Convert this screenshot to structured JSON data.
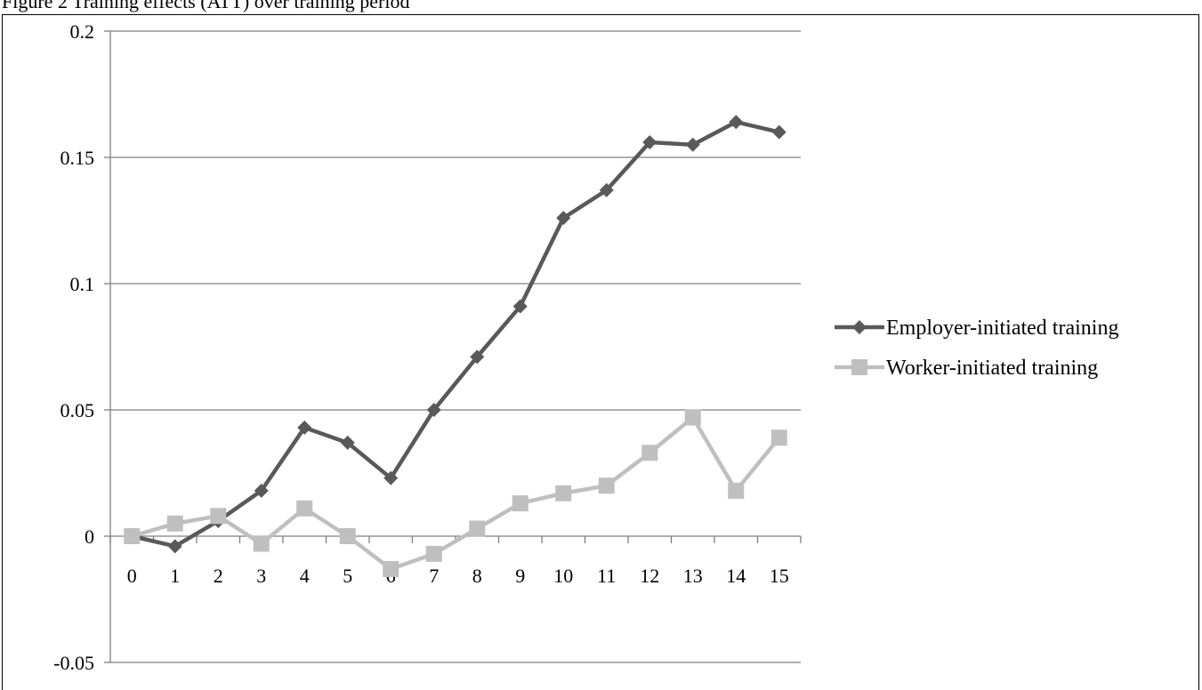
{
  "caption": "Figure 2 Training effects (ATT) over training period",
  "chart_data": {
    "type": "line",
    "title": "",
    "xlabel": "",
    "ylabel": "",
    "categories": [
      "0",
      "1",
      "2",
      "3",
      "4",
      "5",
      "6",
      "7",
      "8",
      "9",
      "10",
      "11",
      "12",
      "13",
      "14",
      "15"
    ],
    "ylim": [
      -0.05,
      0.2
    ],
    "yticks": [
      "-0.05",
      "0",
      "0.05",
      "0.1",
      "0.15",
      "0.2"
    ],
    "ytick_values": [
      -0.05,
      0,
      0.05,
      0.1,
      0.15,
      0.2
    ],
    "grid": true,
    "legend_position": "right",
    "series": [
      {
        "name": "Employer-initiated training",
        "color": "#595959",
        "marker": "diamond",
        "values": [
          0,
          -0.004,
          0.006,
          0.018,
          0.043,
          0.037,
          0.023,
          0.05,
          0.071,
          0.091,
          0.126,
          0.137,
          0.156,
          0.155,
          0.164,
          0.16
        ]
      },
      {
        "name": "Worker-initiated training",
        "color": "#bfbfbf",
        "marker": "square",
        "values": [
          0,
          0.005,
          0.008,
          -0.003,
          0.011,
          0,
          -0.013,
          -0.007,
          0.003,
          0.013,
          0.017,
          0.02,
          0.033,
          0.047,
          0.018,
          0.039
        ]
      }
    ]
  }
}
